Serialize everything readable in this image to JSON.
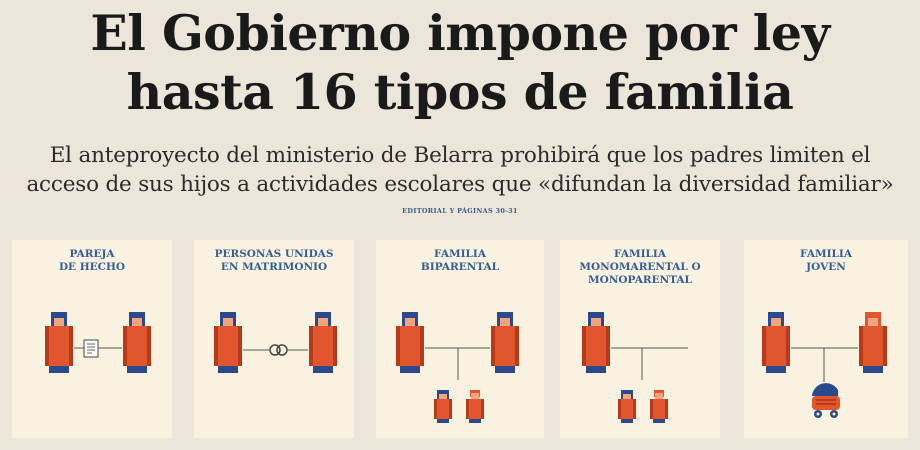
{
  "headline": {
    "line1": "El Gobierno impone por ley",
    "line2": "hasta 16 tipos de familia"
  },
  "subhead": {
    "line1": "El anteproyecto del ministerio de Belarra prohibirá que los padres limiten el",
    "line2": "acceso de sus hijos a actividades escolares que «difundan la diversidad familiar»"
  },
  "reference": "EDITORIAL Y PÁGINAS 30-31",
  "colors": {
    "figure_body": "#e0562e",
    "figure_dark": "#b93a1b",
    "figure_head": "#2b4a8c",
    "figure_face": "#f0a57e",
    "title_blue": "#355e96",
    "panel_bg": "#faf2e0"
  },
  "panels": [
    {
      "title": "PAREJA\nDE HECHO",
      "connector": "document-icon"
    },
    {
      "title": "PERSONAS UNIDAS\nEN MATRIMONIO",
      "connector": "rings-icon"
    },
    {
      "title": "FAMILIA\nBIPARENTAL",
      "connector": "family-tree-two-children"
    },
    {
      "title": "FAMILIA\nMONOMARENTAL O\nMONOPARENTAL",
      "connector": "family-tree-two-children"
    },
    {
      "title": "FAMILIA\nJOVEN",
      "connector": "family-tree-baby-stroller"
    }
  ]
}
